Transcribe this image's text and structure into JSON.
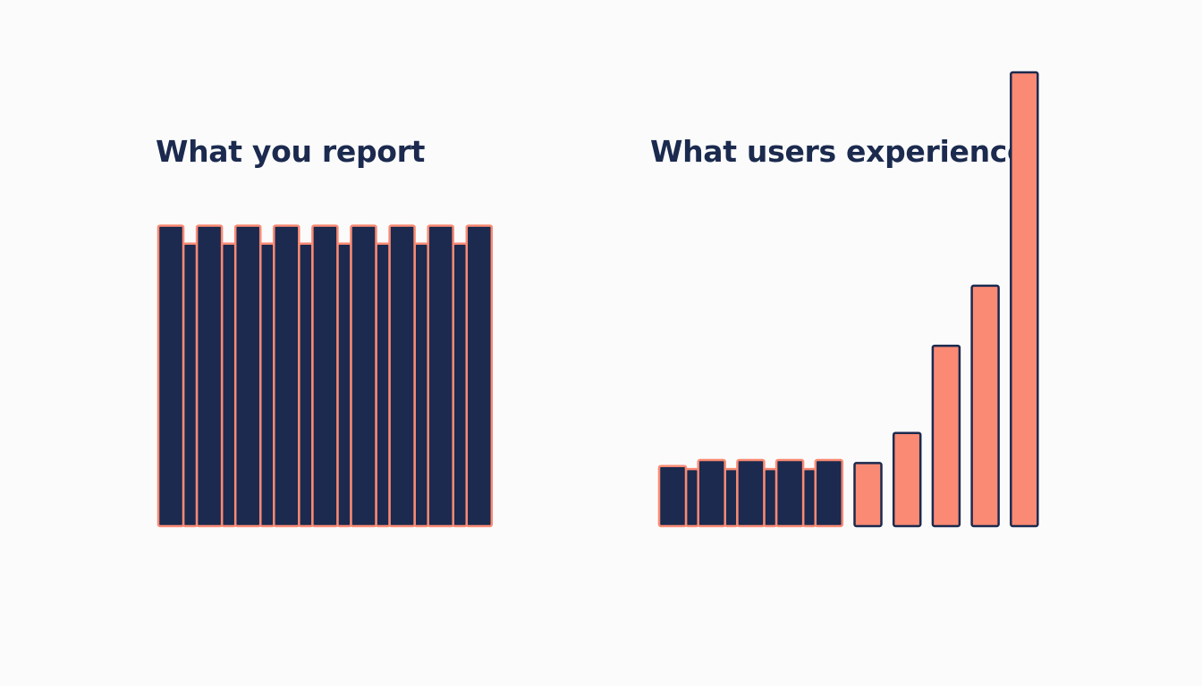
{
  "colors": {
    "navy": "#1b2a4e",
    "coral": "#fa8a74",
    "background": "#fbfbfb"
  },
  "chart_data": [
    {
      "type": "bar",
      "title": "What you report",
      "bars": {
        "values": [
          10,
          10,
          10,
          10,
          10,
          10,
          10,
          10,
          10
        ],
        "fill": "#1b2a4e",
        "outline": "#fa8a74"
      },
      "gap_bars": {
        "values": [
          9.4,
          9.4,
          9.4,
          9.4,
          9.4,
          9.4,
          9.4,
          9.4
        ],
        "fill": "#1b2a4e",
        "outline": "#fa8a74"
      },
      "ylim": [
        0,
        15.1
      ]
    },
    {
      "type": "bar",
      "title": "What users experience",
      "bars": {
        "values": [
          2.0,
          2.2,
          2.2,
          2.2,
          2.2,
          2.1,
          3.1,
          6.0,
          8.0,
          15.1
        ],
        "fills": [
          "#1b2a4e",
          "#1b2a4e",
          "#1b2a4e",
          "#1b2a4e",
          "#1b2a4e",
          "#fa8a74",
          "#fa8a74",
          "#fa8a74",
          "#fa8a74",
          "#fa8a74"
        ],
        "outlines": [
          "#fa8a74",
          "#fa8a74",
          "#fa8a74",
          "#fa8a74",
          "#fa8a74",
          "#1b2a4e",
          "#1b2a4e",
          "#1b2a4e",
          "#1b2a4e",
          "#1b2a4e"
        ]
      },
      "gap_bars": {
        "values": [
          1.9,
          1.9,
          1.9,
          1.9
        ],
        "fill": "#1b2a4e",
        "outline": "#fa8a74"
      },
      "ylim": [
        0,
        15.1
      ]
    }
  ]
}
